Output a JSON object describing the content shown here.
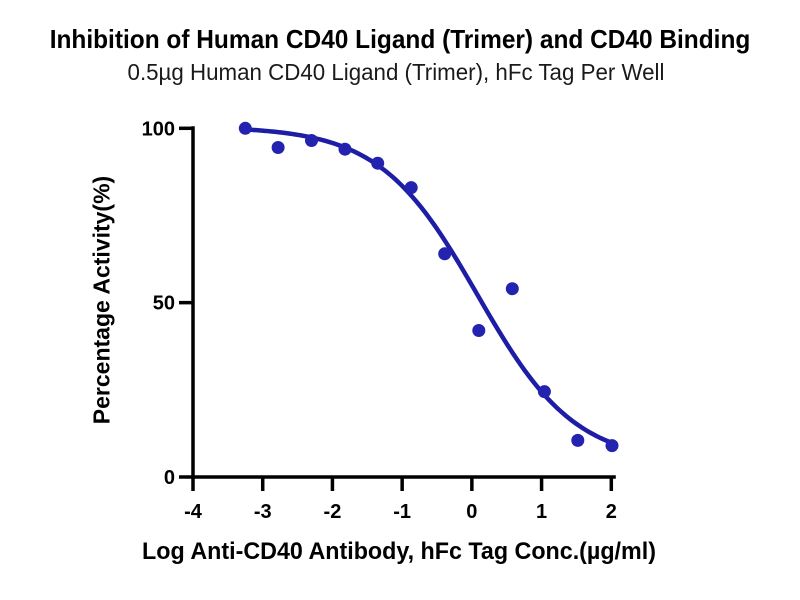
{
  "chart_data": {
    "type": "scatter",
    "title": "Inhibition of Human CD40 Ligand (Trimer) and CD40 Binding",
    "subtitle": "0.5µg Human CD40 Ligand (Trimer), hFc Tag Per Well",
    "xlabel": "Log Anti-CD40 Antibody, hFc Tag Conc.(µg/ml)",
    "ylabel": "Percentage Activity(%)",
    "xlim": [
      -4,
      2
    ],
    "ylim": [
      0,
      100
    ],
    "x_ticks": [
      -4,
      -3,
      -2,
      -1,
      0,
      1,
      2
    ],
    "y_ticks": [
      0,
      50,
      100
    ],
    "grid": false,
    "legend": "none",
    "points": [
      {
        "x": -3.25,
        "y": 100
      },
      {
        "x": -2.78,
        "y": 94.5
      },
      {
        "x": -2.3,
        "y": 96.5
      },
      {
        "x": -1.82,
        "y": 94
      },
      {
        "x": -1.35,
        "y": 90
      },
      {
        "x": -0.87,
        "y": 83
      },
      {
        "x": -0.39,
        "y": 64
      },
      {
        "x": 0.1,
        "y": 42
      },
      {
        "x": 0.58,
        "y": 54
      },
      {
        "x": 1.04,
        "y": 24.5
      },
      {
        "x": 1.52,
        "y": 10.5
      },
      {
        "x": 2.01,
        "y": 9
      }
    ],
    "fit_curve": {
      "model": "four_parameter_logistic",
      "top": 100.5,
      "bottom": 4,
      "log_ic50": 0.08,
      "hill_slope": 0.62,
      "x_start": -3.25,
      "x_end": 2.01
    },
    "colors": {
      "point": "#2323b0",
      "curve": "#1d1da6",
      "axis": "#000000"
    }
  }
}
